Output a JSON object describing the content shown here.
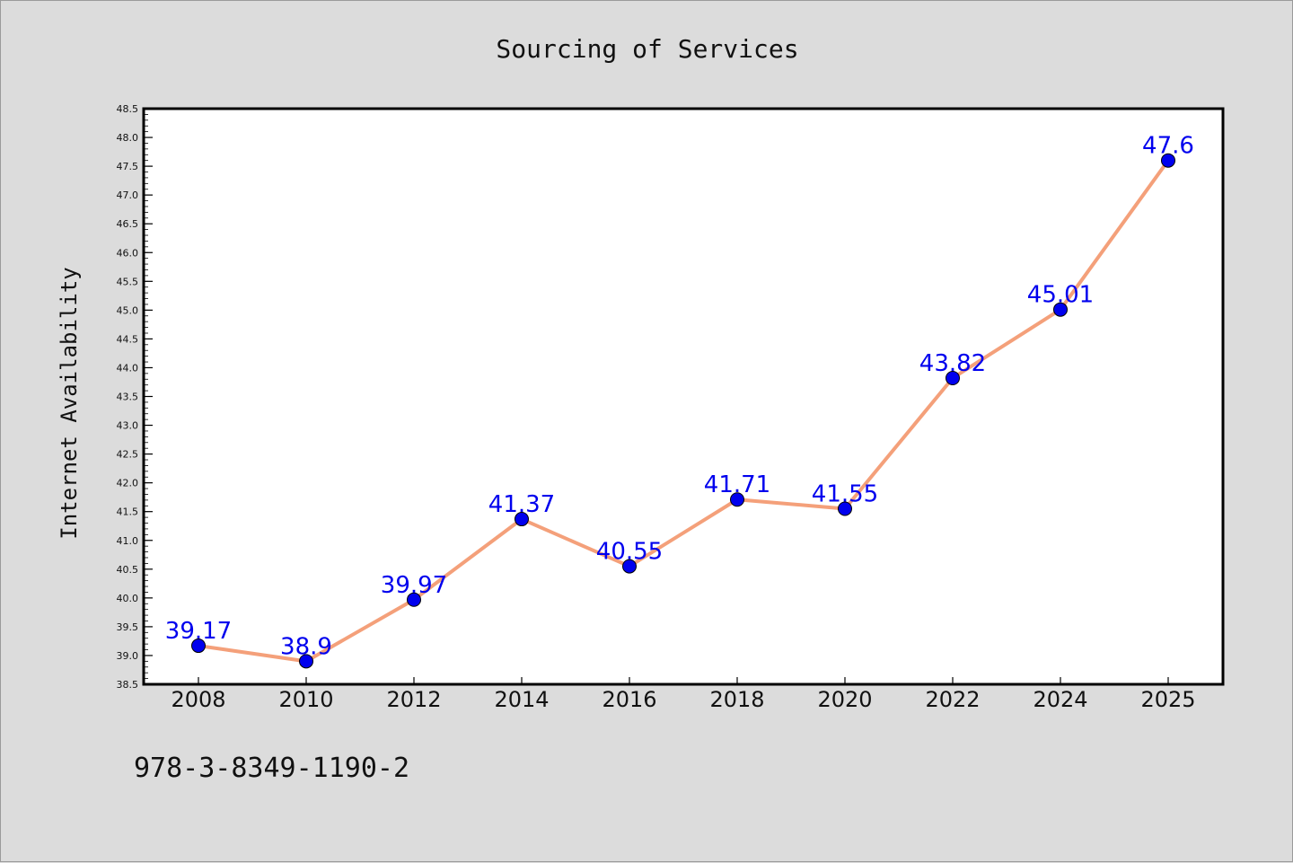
{
  "chart_data": {
    "type": "line",
    "title": "Sourcing of Services",
    "xlabel": "",
    "ylabel": "Internet Availability",
    "categories": [
      "2008",
      "2010",
      "2012",
      "2014",
      "2016",
      "2018",
      "2020",
      "2022",
      "2024",
      "2025"
    ],
    "series": [
      {
        "values": [
          39.17,
          38.9,
          39.97,
          41.37,
          40.55,
          41.71,
          41.55,
          43.82,
          45.01,
          47.6
        ],
        "line_color": "#f4a07a",
        "marker_color": "#0000ee",
        "label_color": "#0000ee"
      }
    ],
    "data_labels": [
      "39.17",
      "38.9",
      "39.97",
      "41.37",
      "40.55",
      "41.71",
      "41.55",
      "43.82",
      "45.01",
      "47.6"
    ],
    "ylim": [
      38.5,
      48.5
    ],
    "yticks": [
      "38.5",
      "39.0",
      "39.5",
      "40.0",
      "40.5",
      "41.0",
      "41.5",
      "42.0",
      "42.5",
      "43.0",
      "43.5",
      "44.0",
      "44.5",
      "45.0",
      "45.5",
      "46.0",
      "46.5",
      "47.0",
      "47.5",
      "48.0",
      "48.5"
    ],
    "grid": false,
    "plot_background": "#ffffff",
    "page_background": "#dcdcdc"
  },
  "footer_text": "978-3-8349-1190-2"
}
